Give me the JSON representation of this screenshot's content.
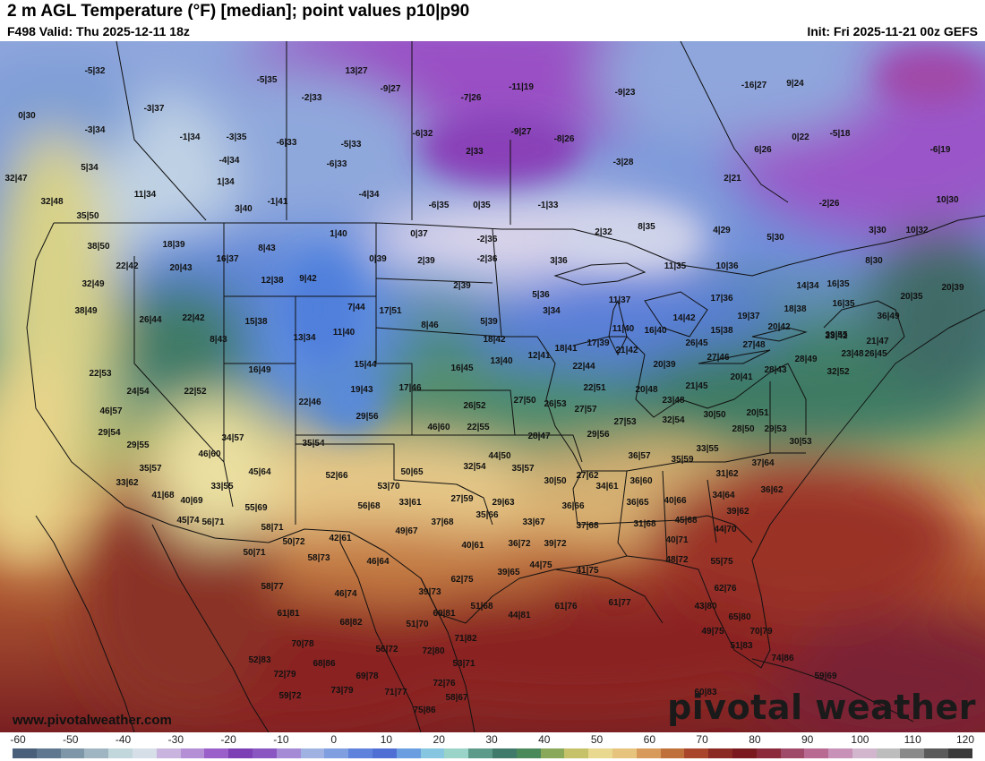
{
  "header": {
    "title": "2 m AGL Temperature (°F) [median]; point values p10|p90",
    "valid": "F498 Valid: Thu 2025-12-11 18z",
    "init": "Init: Fri 2025-11-21 00z GEFS"
  },
  "footer": {
    "url": "www.pivotalweather.com",
    "brand": "pivotal weather"
  },
  "colorbar": {
    "ticks": [
      "-60",
      "-50",
      "-40",
      "-30",
      "-20",
      "-10",
      "0",
      "10",
      "20",
      "30",
      "40",
      "50",
      "60",
      "70",
      "80",
      "90",
      "100",
      "110",
      "120"
    ],
    "colors": [
      "#4a5f7a",
      "#5f7890",
      "#7d96a8",
      "#9fb6c2",
      "#c2d7dc",
      "#d6dfe8",
      "#c8b4de",
      "#b48fd6",
      "#9a5fc8",
      "#7d3fb4",
      "#8a56c2",
      "#a58ad6",
      "#9fb2e2",
      "#7f9fe0",
      "#5f82dc",
      "#4f6fd4",
      "#6a9ee0",
      "#86c6e0",
      "#9ad4c8",
      "#5c9a8a",
      "#3f7a6a",
      "#4a8a5a",
      "#8aa85a",
      "#c6c26a",
      "#e8d890",
      "#e6c47e",
      "#d89a5a",
      "#c0703a",
      "#a8452a",
      "#8a2a22",
      "#7a1a1e",
      "#8a2a3a",
      "#a04a6a",
      "#b86a92",
      "#c892b8",
      "#d2b6ce",
      "#bdbdbd",
      "#8a8a8a",
      "#5a5a5a",
      "#3a3a3a"
    ]
  },
  "map": {
    "point_values": [
      "-5|32",
      "13|27",
      "-5|35",
      "-9|27",
      "-11|19",
      "-9|23",
      "-16|27",
      "9|24",
      "0|30",
      "-3|37",
      "-2|33",
      "-7|26",
      "-3|34",
      "-1|34",
      "-3|35",
      "-6|33",
      "-5|33",
      "-6|32",
      "-9|27",
      "-8|26",
      "0|22",
      "-5|18",
      "5|34",
      "-4|34",
      "-6|33",
      "2|33",
      "-3|28",
      "6|26",
      "-6|19",
      "32|47",
      "11|34",
      "1|34",
      "-4|34",
      "2|21",
      "3|40",
      "-1|41",
      "-6|35",
      "0|35",
      "-1|33",
      "-2|26",
      "10|30",
      "32|48",
      "35|50",
      "1|40",
      "0|37",
      "-2|36",
      "2|32",
      "8|35",
      "4|29",
      "5|30",
      "3|30",
      "10|32",
      "18|39",
      "38|50",
      "16|37",
      "8|43",
      "0|39",
      "2|39",
      "-2|36",
      "3|36",
      "11|35",
      "10|36",
      "8|30",
      "22|42",
      "20|43",
      "12|38",
      "9|42",
      "2|39",
      "32|49",
      "5|36",
      "17|36",
      "14|34",
      "16|35",
      "20|35",
      "20|39",
      "38|49",
      "26|44",
      "22|42",
      "15|38",
      "7|44",
      "17|51",
      "11|37",
      "14|42",
      "19|37",
      "18|38",
      "16|35",
      "36|49",
      "13|34",
      "11|40",
      "8|46",
      "5|39",
      "3|34",
      "11|40",
      "16|40",
      "15|38",
      "20|42",
      "23|42",
      "21|47",
      "8|43",
      "18|42",
      "21|42",
      "26|45",
      "39|55",
      "26|45",
      "22|53",
      "16|49",
      "15|44",
      "16|45",
      "13|40",
      "12|41",
      "18|41",
      "17|39",
      "27|46",
      "27|48",
      "23|48",
      "24|54",
      "22|52",
      "19|43",
      "17|46",
      "22|44",
      "20|39",
      "20|41",
      "28|43",
      "28|49",
      "32|52",
      "22|46",
      "26|52",
      "27|50",
      "26|53",
      "22|51",
      "20|48",
      "21|45",
      "23|48",
      "30|50",
      "20|51",
      "46|57",
      "29|56",
      "27|57",
      "27|53",
      "29|54",
      "46|60",
      "22|55",
      "32|54",
      "28|50",
      "29|53",
      "34|57",
      "35|54",
      "28|47",
      "29|56",
      "29|55",
      "46|60",
      "44|50",
      "36|57",
      "33|55",
      "30|53",
      "35|57",
      "45|64",
      "32|54",
      "35|57",
      "35|59",
      "33|55",
      "50|65",
      "27|62",
      "31|62",
      "37|64",
      "33|62",
      "52|66",
      "30|50",
      "34|61",
      "36|60",
      "36|62",
      "41|68",
      "53|70",
      "27|59",
      "34|64",
      "40|69",
      "55|69",
      "56|68",
      "33|61",
      "29|63",
      "36|66",
      "36|65",
      "40|66",
      "39|62",
      "45|74",
      "56|71",
      "58|71",
      "49|67",
      "37|68",
      "35|66",
      "33|67",
      "37|68",
      "31|68",
      "45|68",
      "44|70",
      "50|72",
      "42|61",
      "40|61",
      "36|72",
      "39|72",
      "40|71",
      "50|71",
      "58|73",
      "46|64",
      "39|65",
      "44|75",
      "41|75",
      "48|72",
      "55|75",
      "58|77",
      "62|75",
      "39|73",
      "46|74",
      "51|68",
      "44|81",
      "61|76",
      "61|77",
      "62|76",
      "61|81",
      "69|81",
      "43|80",
      "65|80",
      "68|82",
      "51|70",
      "49|75",
      "70|79",
      "70|78",
      "71|82",
      "51|83",
      "72|80",
      "56|72",
      "53|71",
      "52|83",
      "68|86",
      "74|86",
      "72|79",
      "69|78",
      "59|69",
      "73|79",
      "72|76",
      "59|72",
      "71|77",
      "58|67",
      "60|83",
      "75|86",
      "55|70"
    ]
  }
}
